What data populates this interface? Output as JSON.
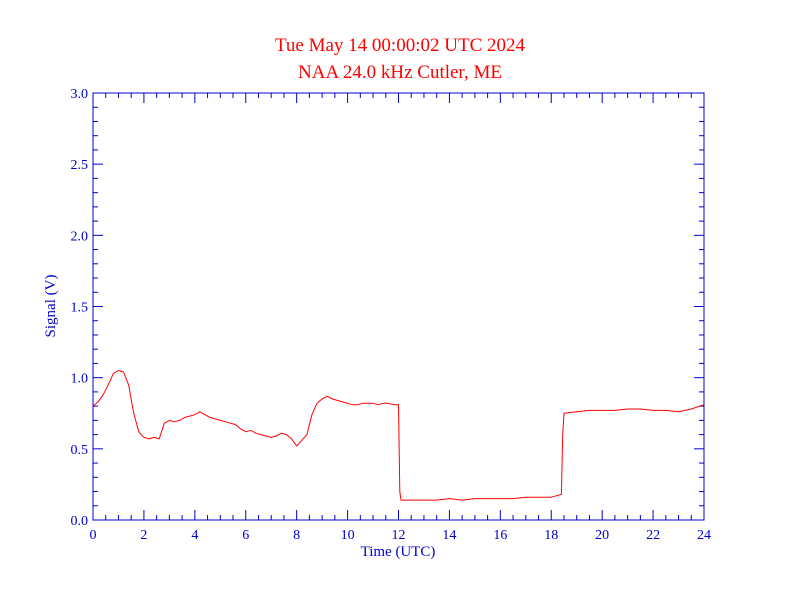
{
  "chart_data": {
    "type": "line",
    "title": "Tue May 14 00:00:02 UTC 2024",
    "subtitle": "NAA 24.0 kHz Cutler, ME",
    "xlabel": "Time (UTC)",
    "ylabel": "Signal (V)",
    "xlim": [
      0,
      24
    ],
    "ylim": [
      0.0,
      3.0
    ],
    "x_ticks": [
      "0",
      "2",
      "4",
      "6",
      "8",
      "10",
      "12",
      "14",
      "16",
      "18",
      "20",
      "22",
      "24"
    ],
    "y_ticks": [
      "0.0",
      "0.5",
      "1.0",
      "1.5",
      "2.0",
      "2.5",
      "3.0"
    ],
    "grid": false,
    "legend": "none",
    "colors": {
      "series": "#ff0000",
      "title": "#ff0000",
      "axes": "#0000cc"
    },
    "series": [
      {
        "x": [
          0,
          0.2,
          0.4,
          0.6,
          0.8,
          1.0,
          1.2,
          1.4,
          1.6,
          1.8,
          2.0,
          2.2,
          2.4,
          2.6,
          2.8,
          3.0,
          3.2,
          3.4,
          3.6,
          3.8,
          4.0,
          4.2,
          4.4,
          4.6,
          4.8,
          5.0,
          5.2,
          5.4,
          5.6,
          5.8,
          6.0,
          6.2,
          6.4,
          6.6,
          6.8,
          7.0,
          7.2,
          7.4,
          7.6,
          7.8,
          8.0,
          8.2,
          8.4,
          8.6,
          8.8,
          9.0,
          9.2,
          9.4,
          9.6,
          9.8,
          10.0,
          10.2,
          10.4,
          10.6,
          10.8,
          11.0,
          11.2,
          11.4,
          11.6,
          11.8,
          12.0,
          12.05,
          12.1,
          12.5,
          13.0,
          13.5,
          14.0,
          14.5,
          15.0,
          15.5,
          16.0,
          16.5,
          17.0,
          17.5,
          18.0,
          18.2,
          18.4,
          18.45,
          18.5,
          19.0,
          19.5,
          20.0,
          20.5,
          21.0,
          21.5,
          22.0,
          22.5,
          23.0,
          23.5,
          24.0
        ],
        "y": [
          0.8,
          0.83,
          0.88,
          0.95,
          1.03,
          1.05,
          1.04,
          0.95,
          0.75,
          0.62,
          0.58,
          0.57,
          0.58,
          0.57,
          0.68,
          0.7,
          0.69,
          0.7,
          0.72,
          0.73,
          0.74,
          0.76,
          0.74,
          0.72,
          0.71,
          0.7,
          0.69,
          0.68,
          0.67,
          0.64,
          0.62,
          0.63,
          0.61,
          0.6,
          0.59,
          0.58,
          0.59,
          0.61,
          0.6,
          0.57,
          0.52,
          0.56,
          0.6,
          0.74,
          0.82,
          0.85,
          0.87,
          0.85,
          0.84,
          0.83,
          0.82,
          0.81,
          0.81,
          0.82,
          0.82,
          0.82,
          0.81,
          0.82,
          0.82,
          0.81,
          0.81,
          0.2,
          0.14,
          0.14,
          0.14,
          0.14,
          0.15,
          0.14,
          0.15,
          0.15,
          0.15,
          0.15,
          0.16,
          0.16,
          0.16,
          0.17,
          0.18,
          0.6,
          0.75,
          0.76,
          0.77,
          0.77,
          0.77,
          0.78,
          0.78,
          0.77,
          0.77,
          0.76,
          0.78,
          0.81
        ]
      }
    ]
  }
}
